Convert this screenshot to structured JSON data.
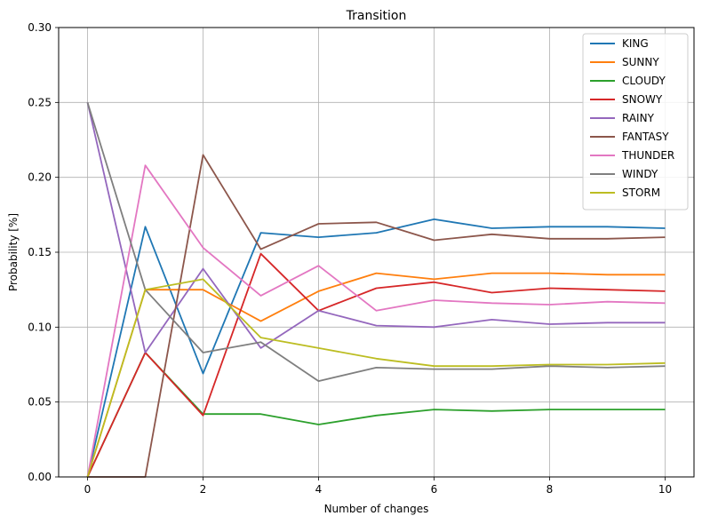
{
  "chart_data": {
    "type": "line",
    "title": "Transition",
    "xlabel": "Number of changes",
    "ylabel": "Probability [%]",
    "xlim": [
      -0.5,
      10.5
    ],
    "ylim": [
      0,
      0.3
    ],
    "xticks": [
      0,
      2,
      4,
      6,
      8,
      10
    ],
    "yticks": [
      0.0,
      0.05,
      0.1,
      0.15,
      0.2,
      0.25,
      0.3
    ],
    "ytick_labels": [
      "0.00",
      "0.05",
      "0.10",
      "0.15",
      "0.20",
      "0.25",
      "0.30"
    ],
    "xtick_labels": [
      "0",
      "2",
      "4",
      "6",
      "8",
      "10"
    ],
    "grid": true,
    "legend_position": "top-right",
    "x": [
      0,
      1,
      2,
      3,
      4,
      5,
      6,
      7,
      8,
      9,
      10
    ],
    "series": [
      {
        "name": "KING",
        "color": "#1f77b4",
        "values": [
          0.0,
          0.167,
          0.069,
          0.163,
          0.16,
          0.163,
          0.172,
          0.166,
          0.167,
          0.167,
          0.166
        ]
      },
      {
        "name": "SUNNY",
        "color": "#ff7f0e",
        "values": [
          0.0,
          0.125,
          0.125,
          0.104,
          0.124,
          0.136,
          0.132,
          0.136,
          0.136,
          0.135,
          0.135
        ]
      },
      {
        "name": "CLOUDY",
        "color": "#2ca02c",
        "values": [
          0.0,
          0.083,
          0.042,
          0.042,
          0.035,
          0.041,
          0.045,
          0.044,
          0.045,
          0.045,
          0.045
        ]
      },
      {
        "name": "SNOWY",
        "color": "#d62728",
        "values": [
          0.0,
          0.083,
          0.041,
          0.149,
          0.111,
          0.126,
          0.13,
          0.123,
          0.126,
          0.125,
          0.124
        ]
      },
      {
        "name": "RAINY",
        "color": "#9467bd",
        "values": [
          0.25,
          0.083,
          0.139,
          0.086,
          0.111,
          0.101,
          0.1,
          0.105,
          0.102,
          0.103,
          0.103
        ]
      },
      {
        "name": "FANTASY",
        "color": "#8c564b",
        "values": [
          0.0,
          0.0,
          0.215,
          0.152,
          0.169,
          0.17,
          0.158,
          0.162,
          0.159,
          0.159,
          0.16
        ]
      },
      {
        "name": "THUNDER",
        "color": "#e377c2",
        "values": [
          0.0,
          0.208,
          0.153,
          0.121,
          0.141,
          0.111,
          0.118,
          0.116,
          0.115,
          0.117,
          0.116
        ]
      },
      {
        "name": "WINDY",
        "color": "#7f7f7f",
        "values": [
          0.25,
          0.125,
          0.083,
          0.09,
          0.064,
          0.073,
          0.072,
          0.072,
          0.074,
          0.073,
          0.074
        ]
      },
      {
        "name": "STORM",
        "color": "#bcbd22",
        "values": [
          0.0,
          0.125,
          0.132,
          0.093,
          0.086,
          0.079,
          0.074,
          0.074,
          0.075,
          0.075,
          0.076
        ]
      }
    ]
  }
}
